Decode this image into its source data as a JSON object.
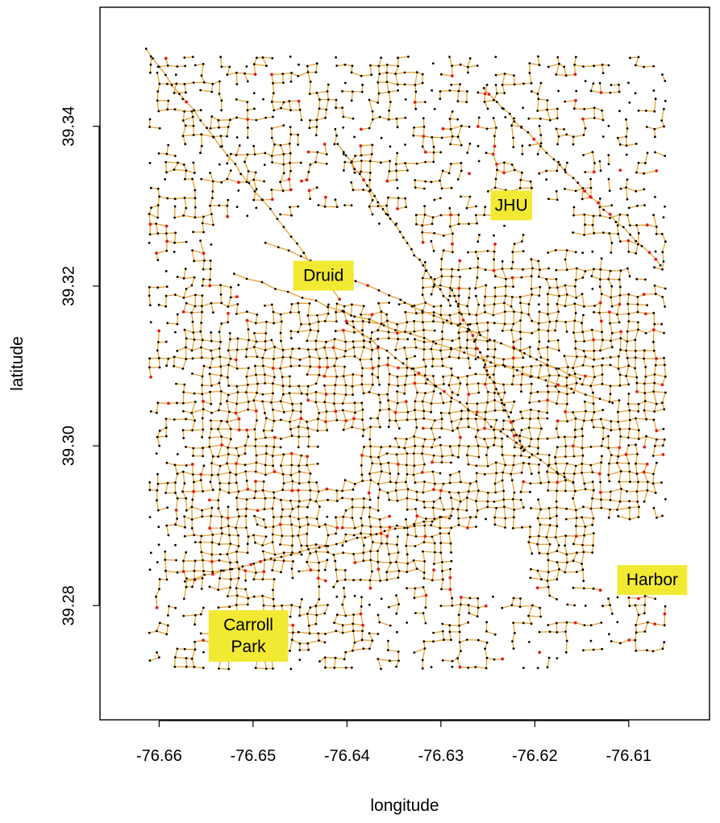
{
  "chart_data": {
    "type": "scatter",
    "subtype": "spatial street-network graph",
    "title": "",
    "xlabel": "longitude",
    "ylabel": "latitude",
    "xlim": [
      -76.6663,
      -76.6014
    ],
    "ylim": [
      39.2657,
      39.3549
    ],
    "xticks": [
      -76.66,
      -76.65,
      -76.64,
      -76.63,
      -76.62,
      -76.61
    ],
    "xtick_labels": [
      "-76.66",
      "-76.65",
      "-76.64",
      "-76.63",
      "-76.62",
      "-76.61"
    ],
    "yticks": [
      39.28,
      39.3,
      39.32,
      39.34
    ],
    "ytick_labels": [
      "39.28",
      "39.30",
      "39.32",
      "39.34"
    ],
    "grid": false,
    "legend": "none",
    "colors": {
      "edges": "#e8a030",
      "nodes": "#000000",
      "highlighted_nodes": "#e31a1c",
      "annotation_fill": "#f2ea32"
    },
    "annotations": [
      {
        "lines": [
          "JHU"
        ],
        "x": -76.6225,
        "y": 39.3301
      },
      {
        "lines": [
          "Druid"
        ],
        "x": -76.6425,
        "y": 39.3213
      },
      {
        "lines": [
          "Harbor"
        ],
        "x": -76.6075,
        "y": 39.2832
      },
      {
        "lines": [
          "Carroll",
          "Park"
        ],
        "x": -76.6505,
        "y": 39.2762
      }
    ],
    "network_note": "dense grid of street segments (orange lines) joining intersection nodes (black dots), with some nodes highlighted in red"
  }
}
